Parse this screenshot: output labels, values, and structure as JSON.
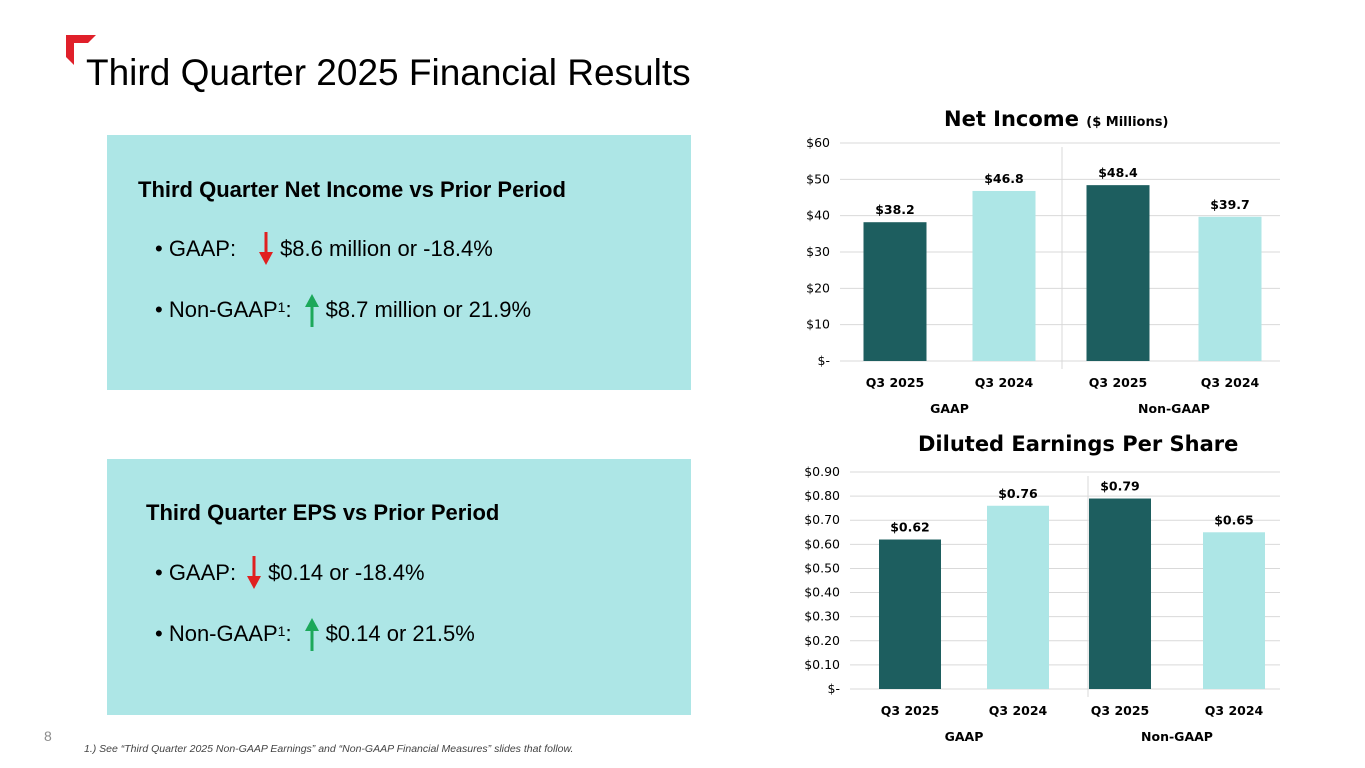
{
  "slide": {
    "title": "Third Quarter 2025 Financial Results",
    "page_number": "8",
    "footnote": "1.) See “Third Quarter 2025 Non-GAAP Earnings” and “Non-GAAP Financial Measures” slides that follow."
  },
  "colors": {
    "accent": "#e0202a",
    "dark_bar": "#1d5e5f",
    "light_bar": "#ade6e6",
    "card_bg": "#ade6e6",
    "arrow_down": "#e02020",
    "arrow_up": "#1ca85a"
  },
  "card_net_income": {
    "heading": "Third Quarter Net Income vs Prior Period",
    "gaap_label": "• GAAP:",
    "gaap_arrow": "arrow-down-icon",
    "gaap_text": "$8.6 million or -18.4%",
    "nongaap_label": "• Non-GAAP",
    "nongaap_sup": "1",
    "nongaap_colon": ":",
    "nongaap_arrow": "arrow-up-icon",
    "nongaap_text": "$8.7 million or 21.9%"
  },
  "card_eps": {
    "heading": "Third Quarter EPS vs Prior Period",
    "gaap_label": "• GAAP:",
    "gaap_arrow": "arrow-down-icon",
    "gaap_text": "$0.14 or -18.4%",
    "nongaap_label": "• Non-GAAP",
    "nongaap_sup": "1",
    "nongaap_colon": ":",
    "nongaap_arrow": "arrow-up-icon",
    "nongaap_text": "$0.14 or 21.5%"
  },
  "chart_data": [
    {
      "type": "bar",
      "title": "Net Income",
      "title_unit": "($ Millions)",
      "categories": [
        "Q3 2025",
        "Q3 2024",
        "Q3 2025",
        "Q3 2024"
      ],
      "groups": [
        "GAAP",
        "Non-GAAP"
      ],
      "values": [
        38.2,
        46.8,
        48.4,
        39.7
      ],
      "data_labels": [
        "$38.2",
        "$46.8",
        "$48.4",
        "$39.7"
      ],
      "ylim": [
        0,
        60
      ],
      "yticks": [
        0,
        10,
        20,
        30,
        40,
        50,
        60
      ],
      "ytick_labels": [
        "$-",
        "$10",
        "$20",
        "$30",
        "$40",
        "$50",
        "$60"
      ],
      "grid": true
    },
    {
      "type": "bar",
      "title": "Diluted Earnings Per Share",
      "categories": [
        "Q3 2025",
        "Q3 2024",
        "Q3 2025",
        "Q3 2024"
      ],
      "groups": [
        "GAAP",
        "Non-GAAP"
      ],
      "values": [
        0.62,
        0.76,
        0.79,
        0.65
      ],
      "data_labels": [
        "$0.62",
        "$0.76",
        "$0.79",
        "$0.65"
      ],
      "ylim": [
        0,
        0.9
      ],
      "yticks": [
        0,
        0.1,
        0.2,
        0.3,
        0.4,
        0.5,
        0.6,
        0.7,
        0.8,
        0.9
      ],
      "ytick_labels": [
        "$-",
        "$0.10",
        "$0.20",
        "$0.30",
        "$0.40",
        "$0.50",
        "$0.60",
        "$0.70",
        "$0.80",
        "$0.90"
      ],
      "grid": true
    }
  ]
}
